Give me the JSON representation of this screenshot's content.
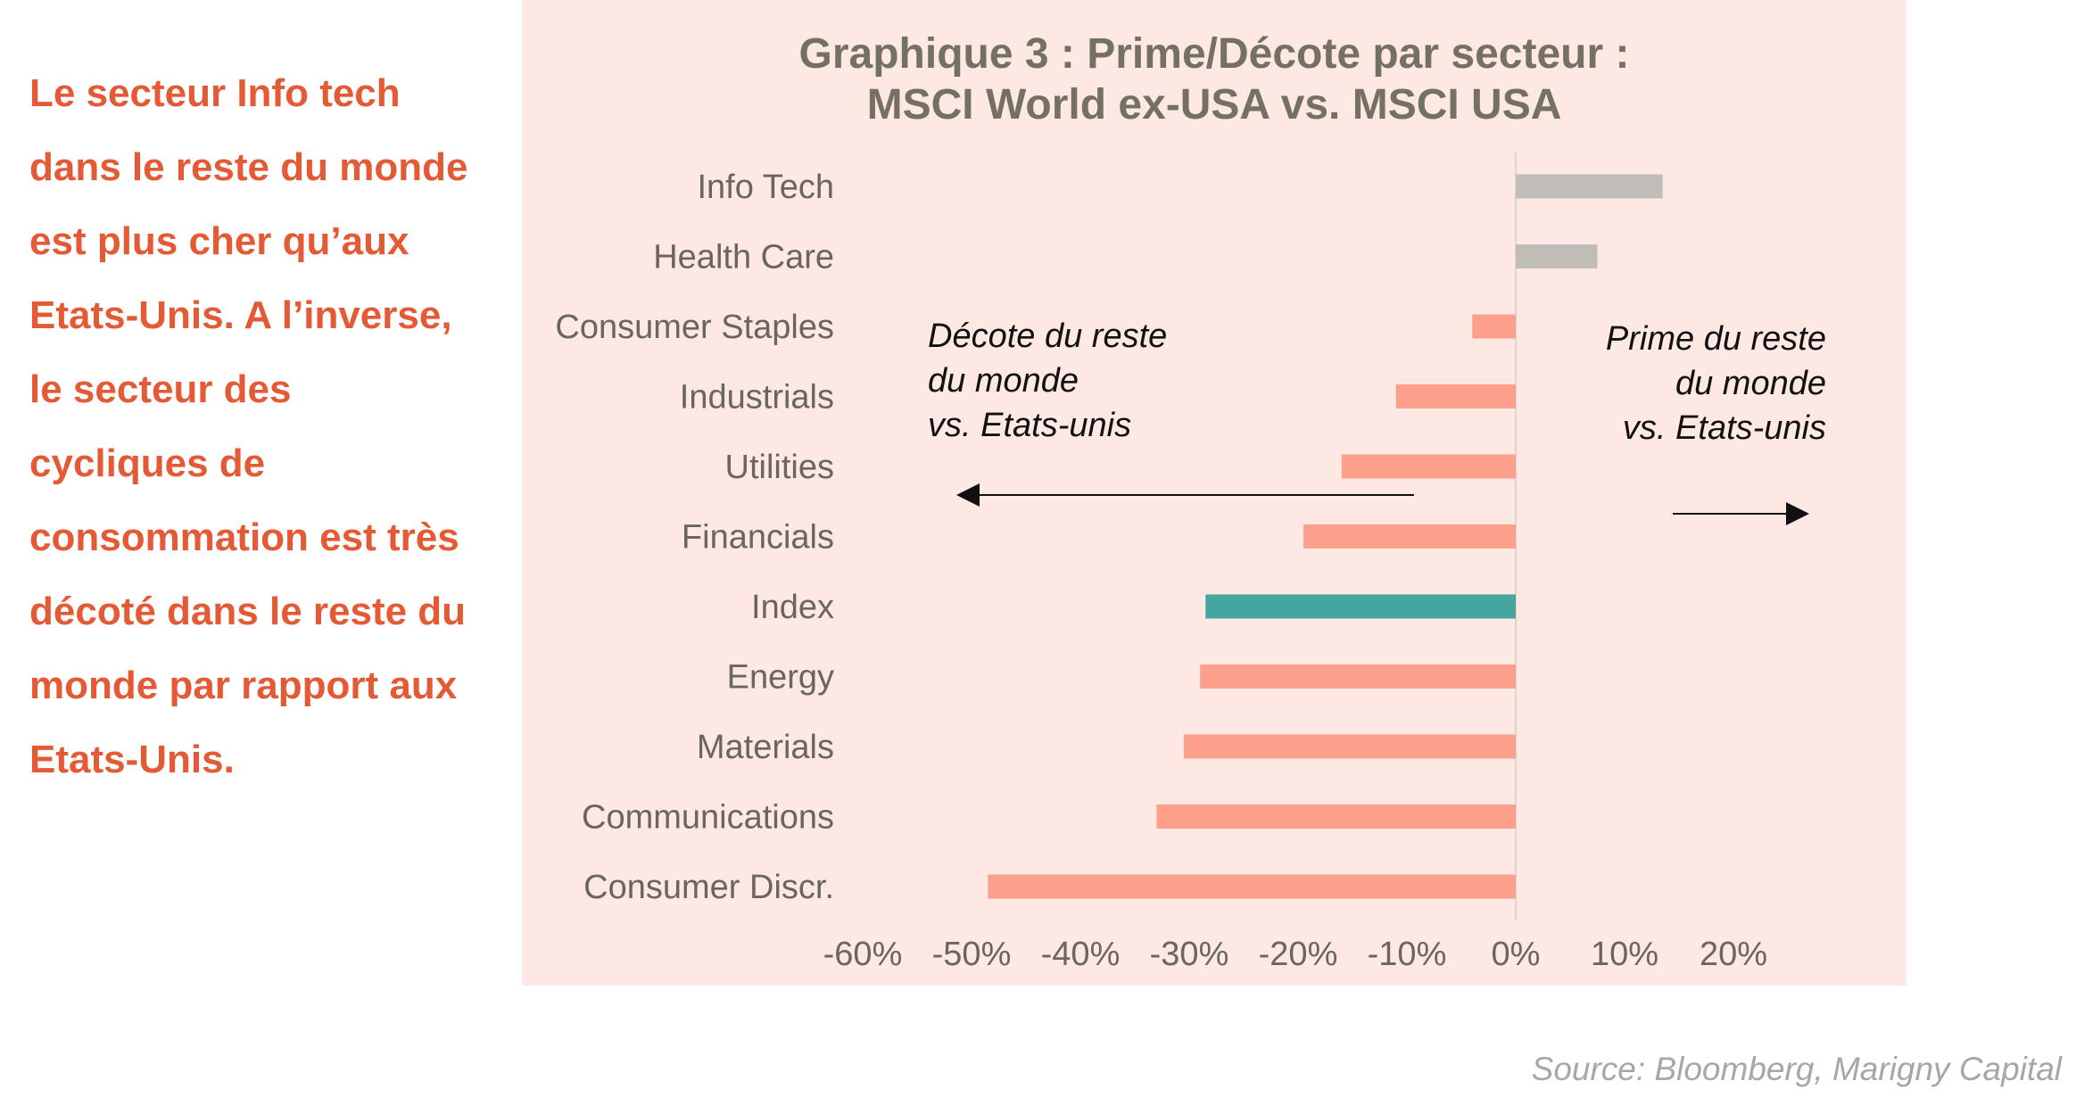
{
  "commentary": "Le secteur Info tech dans le reste du monde est plus cher qu’aux Etats-Unis. A l’inverse, le secteur des cycliques de consommation est très décoté dans le reste du monde par rapport aux Etats-Unis.",
  "source": "Source: Bloomberg, Marigny Capital",
  "colors": {
    "panel_background": "#fde8e4",
    "premium_bar": "#c0bdb8",
    "discount_bar": "#fca08b",
    "index_bar": "#45a6a0",
    "commentary_text": "#e35a35",
    "title_text": "#747160",
    "axis_text": "#6a665c"
  },
  "annotations": {
    "left": [
      "Décote du reste",
      "du monde",
      "vs. Etats-unis"
    ],
    "right": [
      "Prime du reste",
      "du monde",
      "vs. Etats-unis"
    ]
  },
  "chart_data": {
    "type": "bar",
    "orientation": "horizontal",
    "title_lines": [
      "Graphique 3 : Prime/Décote par secteur :",
      "MSCI World ex-USA vs. MSCI USA"
    ],
    "categories": [
      "Info Tech",
      "Health Care",
      "Consumer Staples",
      "Industrials",
      "Utilities",
      "Financials",
      "Index",
      "Energy",
      "Materials",
      "Communications",
      "Consumer Discr."
    ],
    "values": [
      13.5,
      7.5,
      -4,
      -11,
      -16,
      -19.5,
      -28.5,
      -29,
      -30.5,
      -33,
      -48.5
    ],
    "highlight_category": "Index",
    "xlim": [
      -60,
      20
    ],
    "xticks": [
      -60,
      -50,
      -40,
      -30,
      -20,
      -10,
      0,
      10,
      20
    ],
    "xtick_labels": [
      "-60%",
      "-50%",
      "-40%",
      "-30%",
      "-20%",
      "-10%",
      "0%",
      "10%",
      "20%"
    ],
    "grid": false,
    "legend": "none"
  }
}
